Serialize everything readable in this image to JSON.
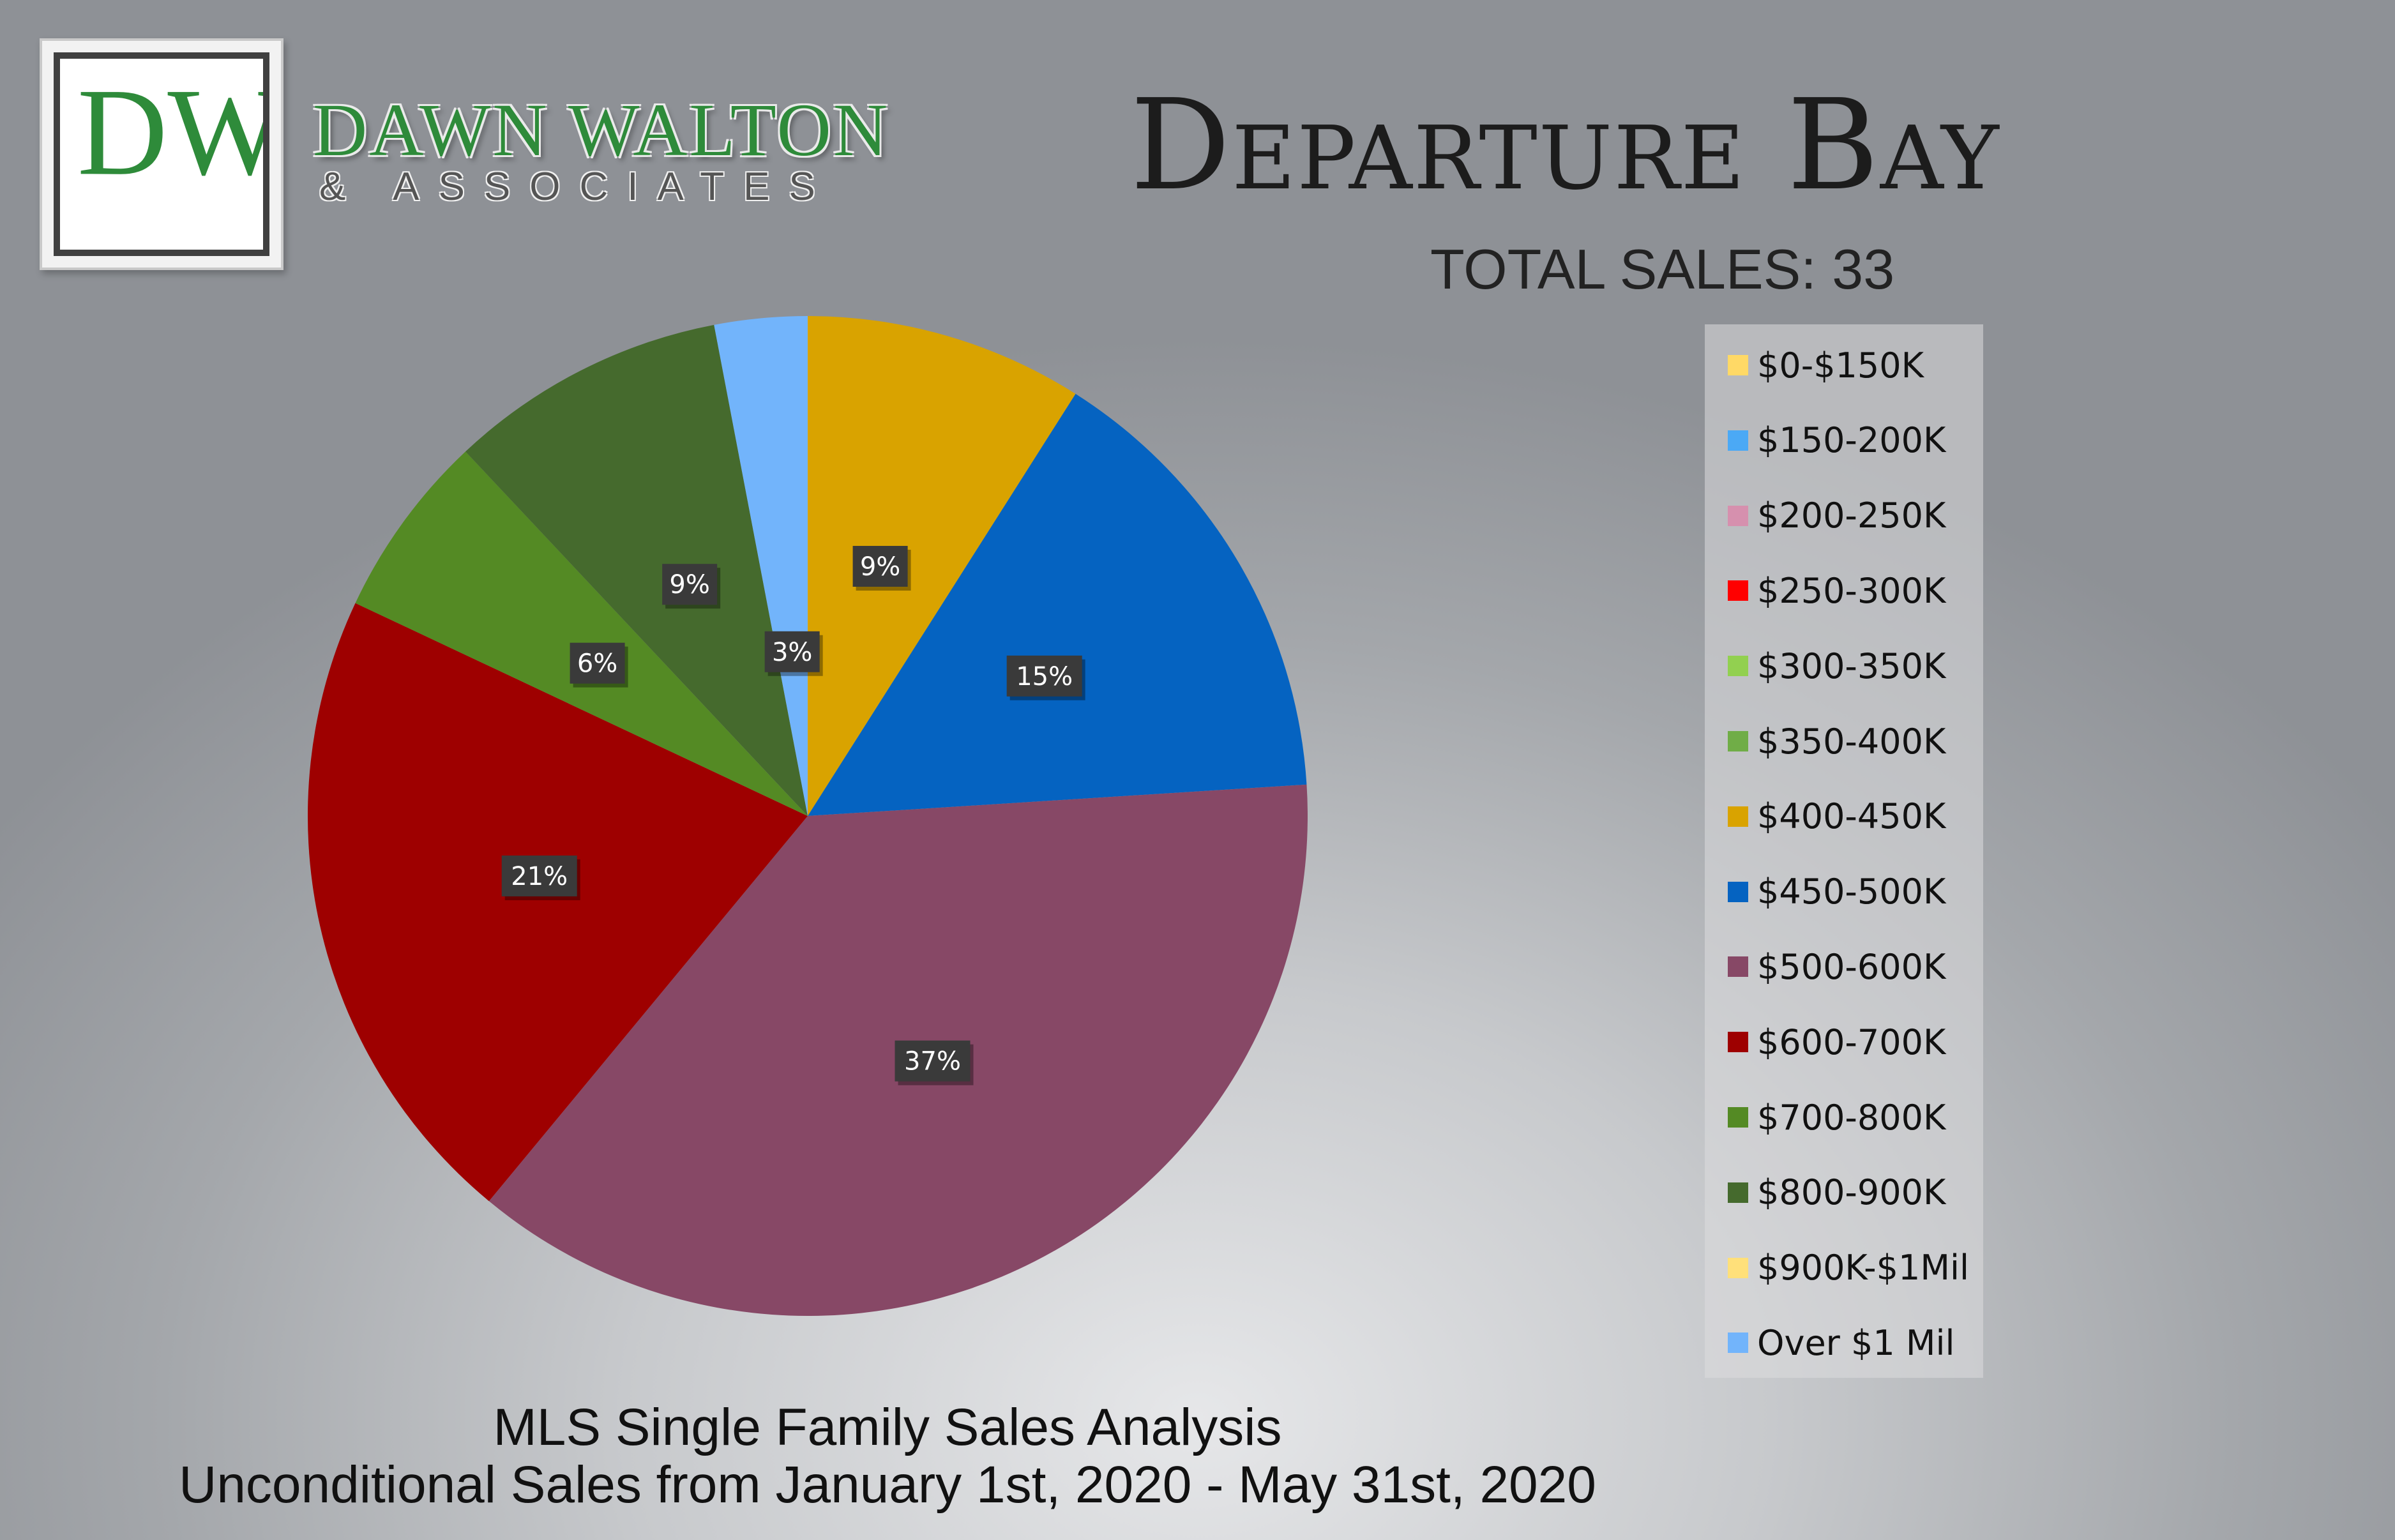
{
  "brand": {
    "monogram": "DW",
    "name": "DAWN WALTON",
    "subtitle": "& ASSOCIATES"
  },
  "header": {
    "title": "Departure Bay",
    "total_sales": "TOTAL SALES: 33"
  },
  "footer": {
    "line1": "MLS Single Family Sales Analysis",
    "line2": "Unconditional Sales from January 1st, 2020 - May 31st, 2020"
  },
  "chart_data": {
    "type": "pie",
    "title": "",
    "slices": [
      {
        "label": "$400-450K",
        "value": 9,
        "data_label": "9%",
        "color": "#d9a300"
      },
      {
        "label": "$450-500K",
        "value": 15,
        "data_label": "15%",
        "color": "#0563c1"
      },
      {
        "label": "$500-600K",
        "value": 37,
        "data_label": "37%",
        "color": "#874866"
      },
      {
        "label": "$600-700K",
        "value": 21,
        "data_label": "21%",
        "color": "#9e0000"
      },
      {
        "label": "$700-800K",
        "value": 6,
        "data_label": "6%",
        "color": "#548a24"
      },
      {
        "label": "$800-900K",
        "value": 9,
        "data_label": "9%",
        "color": "#456a2d"
      },
      {
        "label": "Over $1 Mil",
        "value": 3,
        "data_label": "3%",
        "color": "#72b4fb"
      }
    ],
    "legend": {
      "position": "right",
      "items": [
        {
          "label": "$0-$150K",
          "color": "#ffd966"
        },
        {
          "label": "$150-200K",
          "color": "#4ba9f5"
        },
        {
          "label": "$200-250K",
          "color": "#d690ae"
        },
        {
          "label": "$250-300K",
          "color": "#ff0000"
        },
        {
          "label": "$300-350K",
          "color": "#92d050"
        },
        {
          "label": "$350-400K",
          "color": "#70ad47"
        },
        {
          "label": "$400-450K",
          "color": "#d9a300"
        },
        {
          "label": "$450-500K",
          "color": "#0563c1"
        },
        {
          "label": "$500-600K",
          "color": "#874866"
        },
        {
          "label": "$600-700K",
          "color": "#9e0000"
        },
        {
          "label": "$700-800K",
          "color": "#548a24"
        },
        {
          "label": "$800-900K",
          "color": "#456a2d"
        },
        {
          "label": "$900K-$1Mil",
          "color": "#ffe07a"
        },
        {
          "label": "Over $1 Mil",
          "color": "#72b4fb"
        }
      ]
    }
  }
}
